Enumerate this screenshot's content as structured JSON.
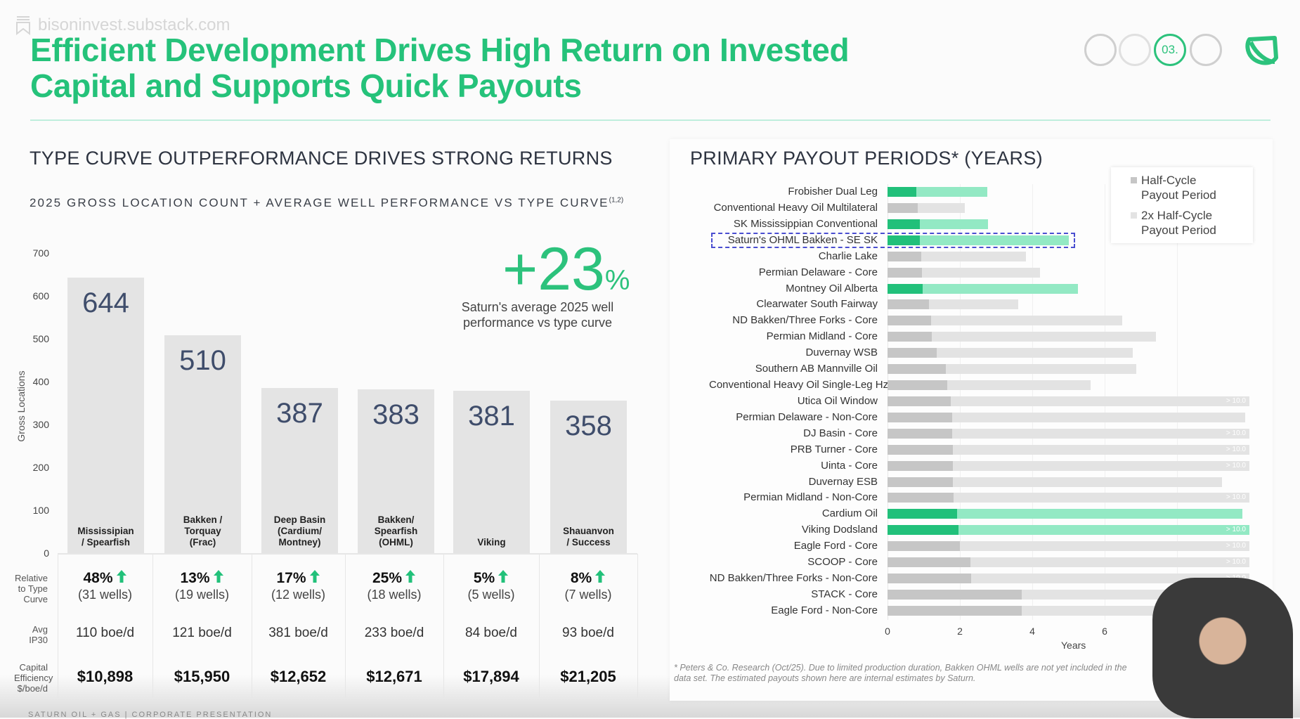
{
  "watermark": "bisoninvest.substack.com",
  "title": {
    "line1": "Efficient Development Drives High Return on Invested",
    "line2": "Capital and Supports Quick Payouts"
  },
  "steps": {
    "active_label": "03.",
    "active_index": 2,
    "count": 4
  },
  "colors": {
    "brand_green": "#2cc27c",
    "bar_green": "#21c07a",
    "bar_green_light": "#93e9c4",
    "bar_gray": "#c6c6c6",
    "bar_gray_light": "#e3e3e3"
  },
  "left": {
    "heading": "TYPE CURVE OUTPERFORMANCE DRIVES STRONG RETURNS",
    "subheading": "2025 GROSS LOCATION COUNT + AVERAGE WELL PERFORMANCE VS TYPE CURVE",
    "subheading_sup": "(1,2)",
    "callout_value": "+23",
    "callout_unit": "%",
    "callout_caption_1": "Saturn's average 2025 well",
    "callout_caption_2": "performance vs type curve",
    "row_labels": {
      "relative": [
        "Relative",
        "to Type",
        "Curve"
      ],
      "ip": [
        "Avg",
        "IP30"
      ],
      "capex": [
        "Capital",
        "Efficiency",
        "$/boe/d"
      ]
    },
    "table": [
      {
        "pct": "48%",
        "wells": "(31 wells)",
        "ip": "110 boe/d",
        "cap": "$10,898"
      },
      {
        "pct": "13%",
        "wells": "(19 wells)",
        "ip": "121 boe/d",
        "cap": "$15,950"
      },
      {
        "pct": "17%",
        "wells": "(12 wells)",
        "ip": "381 boe/d",
        "cap": "$12,652"
      },
      {
        "pct": "25%",
        "wells": "(18 wells)",
        "ip": "233 boe/d",
        "cap": "$12,671"
      },
      {
        "pct": "5%",
        "wells": "(5 wells)",
        "ip": "84 boe/d",
        "cap": "$17,894"
      },
      {
        "pct": "8%",
        "wells": "(7 wells)",
        "ip": "93 boe/d",
        "cap": "$21,205"
      }
    ]
  },
  "right": {
    "heading": "PRIMARY PAYOUT PERIODS* (YEARS)",
    "legend": [
      {
        "label1": "Half-Cycle",
        "label2": "Payout Period"
      },
      {
        "label1": "2x Half-Cycle",
        "label2": "Payout Period"
      }
    ],
    "over_label": "> 10.0",
    "footnote_1": "* Peters & Co. Research (Oct/25).  Due to limited production duration, Bakken OHML wells  are not yet included in the",
    "footnote_2": "data set.  The estimated payouts shown here are internal estimates by Saturn."
  },
  "footer": "SATURN OIL + GAS  |  CORPORATE PRESENTATION",
  "chart_data": [
    {
      "type": "bar",
      "title": "2025 Gross Location Count",
      "ylabel": "Gross Locations",
      "ylim": [
        0,
        700
      ],
      "yticks": [
        0,
        100,
        200,
        300,
        400,
        500,
        600,
        700
      ],
      "categories": [
        [
          "Mississipian",
          "/ Spearfish"
        ],
        [
          "Bakken /",
          "Torquay",
          "(Frac)"
        ],
        [
          "Deep Basin",
          "(Cardium/",
          "Montney)"
        ],
        [
          "Bakken/",
          "Spearfish",
          "(OHML)"
        ],
        [
          "Viking"
        ],
        [
          "Shauanvon",
          "/ Success"
        ]
      ],
      "values": [
        644,
        510,
        387,
        383,
        381,
        358
      ]
    },
    {
      "type": "bar",
      "orientation": "horizontal",
      "title": "PRIMARY PAYOUT PERIODS* (YEARS)",
      "xlabel": "Years",
      "xlim": [
        0,
        10
      ],
      "xticks": [
        0,
        2,
        4,
        6,
        8
      ],
      "series_names": [
        "Half-Cycle Payout Period",
        "2x Half-Cycle Payout Period"
      ],
      "rows": [
        {
          "name": "Frobisher Dual Leg",
          "half": 0.8,
          "full": 2.75,
          "green": true
        },
        {
          "name": "Conventional Heavy Oil Multilateral",
          "half": 0.84,
          "full": 2.13
        },
        {
          "name": "SK Mississippian Conventional",
          "half": 0.9,
          "full": 2.77,
          "green": true
        },
        {
          "name": "Saturn's OHML Bakken - SE SK",
          "half": 0.9,
          "full": 5.0,
          "green": true,
          "highlight": true
        },
        {
          "name": "Charlie Lake",
          "half": 0.93,
          "full": 3.83
        },
        {
          "name": "Permian Delaware - Core",
          "half": 0.96,
          "full": 4.21
        },
        {
          "name": "Montney Oil Alberta",
          "half": 0.97,
          "full": 5.26,
          "green": true
        },
        {
          "name": "Clearwater South Fairway",
          "half": 1.14,
          "full": 3.62
        },
        {
          "name": "ND Bakken/Three Forks - Core",
          "half": 1.21,
          "full": 6.48
        },
        {
          "name": "Permian Midland - Core",
          "half": 1.23,
          "full": 7.42
        },
        {
          "name": "Duvernay WSB",
          "half": 1.36,
          "full": 6.77
        },
        {
          "name": "Southern AB Mannville Oil",
          "half": 1.61,
          "full": 6.87
        },
        {
          "name": "Conventional Heavy Oil Single-Leg Hz",
          "half": 1.65,
          "full": 5.62
        },
        {
          "name": "Utica Oil Window",
          "half": 1.75,
          "full": 10,
          "over": true
        },
        {
          "name": "Permian Delaware - Non-Core",
          "half": 1.79,
          "full": 9.88
        },
        {
          "name": "DJ Basin - Core",
          "half": 1.79,
          "full": 10,
          "over": true
        },
        {
          "name": "PRB Turner - Core",
          "half": 1.8,
          "full": 10,
          "over": true
        },
        {
          "name": "Uinta - Core",
          "half": 1.8,
          "full": 10,
          "over": true
        },
        {
          "name": "Duvernay ESB",
          "half": 1.81,
          "full": 9.24
        },
        {
          "name": "Permian Midland - Non-Core",
          "half": 1.83,
          "full": 10,
          "over": true
        },
        {
          "name": "Cardium Oil",
          "half": 1.92,
          "full": 9.81,
          "green": true
        },
        {
          "name": "Viking Dodsland",
          "half": 1.96,
          "full": 10,
          "over": true,
          "green": true
        },
        {
          "name": "Eagle Ford - Core",
          "half": 2.0,
          "full": 10,
          "over": true
        },
        {
          "name": "SCOOP - Core",
          "half": 2.3,
          "full": 10,
          "over": true
        },
        {
          "name": "ND Bakken/Three Forks - Non-Core",
          "half": 2.32,
          "full": 10,
          "over": true
        },
        {
          "name": "STACK - Core",
          "half": 3.7,
          "full": 10
        },
        {
          "name": "Eagle Ford - Non-Core",
          "half": 3.71,
          "full": 10
        }
      ]
    }
  ]
}
